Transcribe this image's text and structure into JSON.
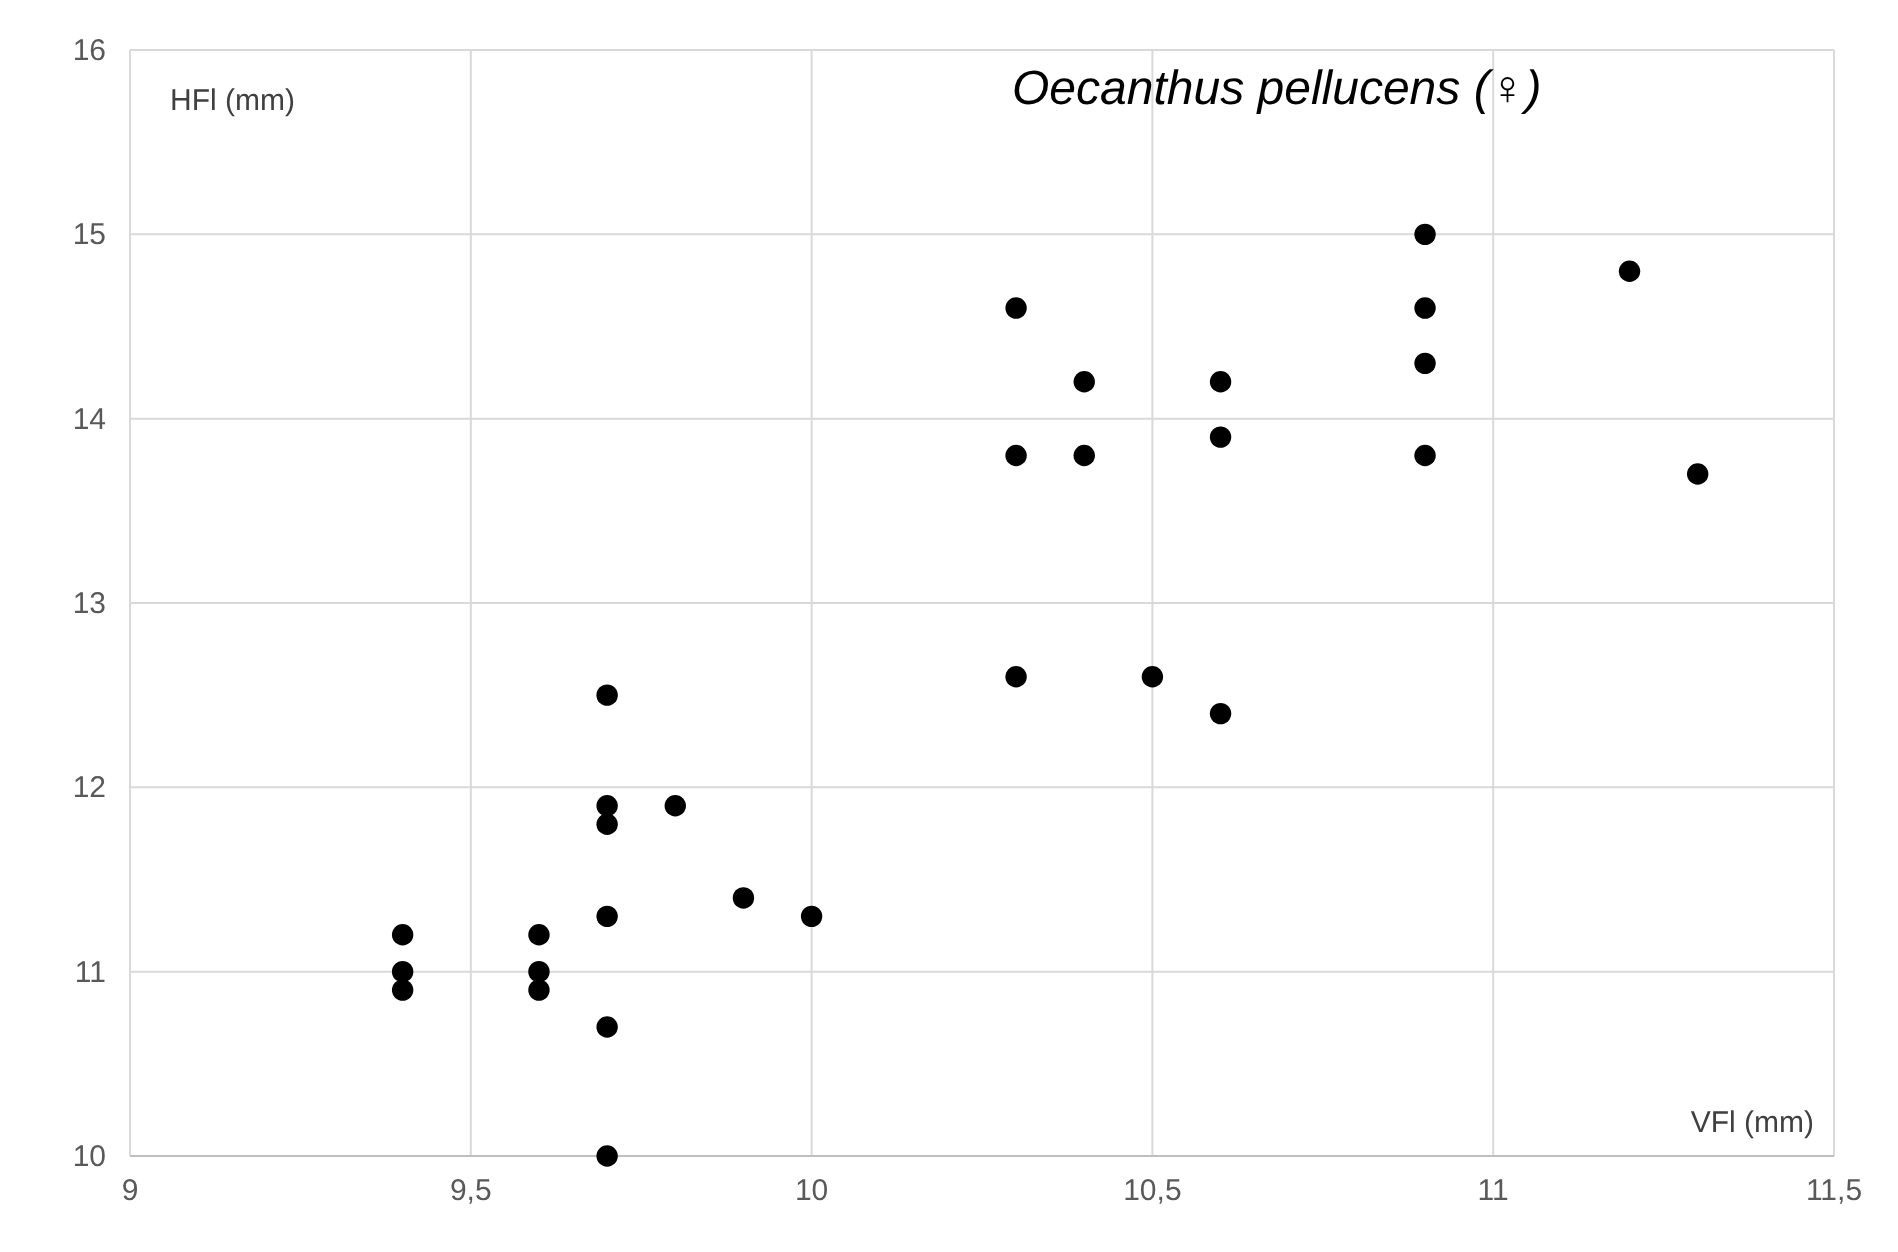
{
  "chart_data": {
    "type": "scatter",
    "title": "Oecanthus pellucens (♀)",
    "xlabel": "VFl (mm)",
    "ylabel": "HFl (mm)",
    "x": [
      9.4,
      9.4,
      9.4,
      9.6,
      9.6,
      9.6,
      9.7,
      9.7,
      9.7,
      9.7,
      9.7,
      9.7,
      9.8,
      9.9,
      10.0,
      10.3,
      10.3,
      10.3,
      10.4,
      10.4,
      10.5,
      10.6,
      10.6,
      10.6,
      10.9,
      10.9,
      10.9,
      10.9,
      11.2,
      11.3
    ],
    "series": [
      {
        "color": "#000000",
        "values": [
          11.2,
          11.0,
          10.9,
          11.2,
          11.0,
          10.9,
          12.5,
          11.9,
          11.8,
          11.3,
          10.7,
          10.0,
          11.9,
          11.4,
          11.3,
          14.6,
          13.8,
          12.6,
          14.2,
          13.8,
          12.6,
          14.2,
          13.9,
          12.4,
          15.0,
          14.6,
          14.3,
          13.8,
          14.8,
          13.7
        ]
      }
    ],
    "xlim": [
      9,
      11.5
    ],
    "xticks": [
      9,
      {
        "value": 9.5,
        "label": "9,5"
      },
      10,
      {
        "value": 10.5,
        "label": "10,5"
      },
      11,
      {
        "value": 11.5,
        "label": "11,5"
      }
    ],
    "ylim": [
      10,
      16
    ],
    "yticks": [
      10,
      11,
      12,
      13,
      14,
      15,
      16
    ],
    "grid": true,
    "marker": "circle"
  }
}
